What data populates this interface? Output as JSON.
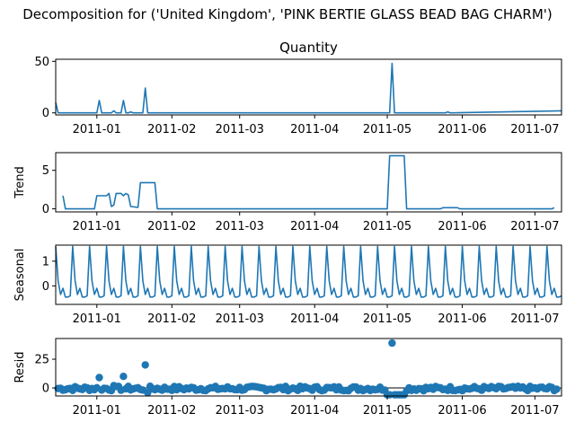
{
  "figure": {
    "suptitle": "Decomposition for ('United Kingdom', 'PINK BERTIE GLASS BEAD BAG CHARM')"
  },
  "chart_data": [
    {
      "type": "line",
      "title": "Quantity",
      "ylabel": "",
      "x_range": [
        "2010-12-15",
        "2011-07-12"
      ],
      "ylim": [
        -2,
        52
      ],
      "yticks": [
        0,
        50
      ],
      "xtick_labels": [
        "2011-01",
        "2011-02",
        "2011-03",
        "2011-04",
        "2011-05",
        "2011-06",
        "2011-07"
      ],
      "grid": false,
      "series": [
        {
          "points": [
            [
              "2010-12-15",
              10
            ],
            [
              "2010-12-16",
              0
            ],
            [
              "2011-01-01",
              0
            ],
            [
              "2011-01-02",
              12
            ],
            [
              "2011-01-03",
              0
            ],
            [
              "2011-01-07",
              0
            ],
            [
              "2011-01-08",
              2
            ],
            [
              "2011-01-09",
              0
            ],
            [
              "2011-01-11",
              0
            ],
            [
              "2011-01-12",
              12
            ],
            [
              "2011-01-13",
              0
            ],
            [
              "2011-01-14",
              0
            ],
            [
              "2011-01-15",
              1
            ],
            [
              "2011-01-16",
              0
            ],
            [
              "2011-01-20",
              0
            ],
            [
              "2011-01-21",
              24
            ],
            [
              "2011-01-22",
              0
            ],
            [
              "2011-05-02",
              0
            ],
            [
              "2011-05-03",
              48
            ],
            [
              "2011-05-04",
              0
            ],
            [
              "2011-05-25",
              0
            ],
            [
              "2011-05-26",
              1
            ],
            [
              "2011-05-27",
              0
            ],
            [
              "2011-07-12",
              2
            ]
          ]
        }
      ]
    },
    {
      "type": "line",
      "title": "",
      "ylabel": "Trend",
      "x_range": [
        "2010-12-15",
        "2011-07-12"
      ],
      "ylim": [
        -0.4,
        7.3
      ],
      "yticks": [
        0,
        5
      ],
      "xtick_labels": [
        "2011-01",
        "2011-02",
        "2011-03",
        "2011-04",
        "2011-05",
        "2011-06",
        "2011-07"
      ],
      "grid": false,
      "series": [
        {
          "points": [
            [
              "2010-12-18",
              1.7
            ],
            [
              "2010-12-19",
              0
            ],
            [
              "2010-12-31",
              0
            ],
            [
              "2011-01-01",
              1.7
            ],
            [
              "2011-01-05",
              1.7
            ],
            [
              "2011-01-06",
              2.0
            ],
            [
              "2011-01-07",
              0.3
            ],
            [
              "2011-01-08",
              0.5
            ],
            [
              "2011-01-09",
              2.0
            ],
            [
              "2011-01-11",
              2.0
            ],
            [
              "2011-01-12",
              1.7
            ],
            [
              "2011-01-13",
              2.0
            ],
            [
              "2011-01-14",
              1.8
            ],
            [
              "2011-01-15",
              0.3
            ],
            [
              "2011-01-18",
              0.2
            ],
            [
              "2011-01-19",
              3.4
            ],
            [
              "2011-01-25",
              3.4
            ],
            [
              "2011-01-26",
              0
            ],
            [
              "2011-05-01",
              0
            ],
            [
              "2011-05-02",
              6.9
            ],
            [
              "2011-05-08",
              6.9
            ],
            [
              "2011-05-09",
              0
            ],
            [
              "2011-05-23",
              0
            ],
            [
              "2011-05-24",
              0.15
            ],
            [
              "2011-05-30",
              0.15
            ],
            [
              "2011-05-31",
              0
            ],
            [
              "2011-07-08",
              0
            ],
            [
              "2011-07-09",
              0.15
            ]
          ]
        }
      ]
    },
    {
      "type": "line",
      "title": "",
      "ylabel": "Seasonal",
      "x_range": [
        "2010-12-15",
        "2011-07-12"
      ],
      "ylim": [
        -0.75,
        1.65
      ],
      "yticks": [
        0,
        1
      ],
      "xtick_labels": [
        "2011-01",
        "2011-02",
        "2011-03",
        "2011-04",
        "2011-05",
        "2011-06",
        "2011-07"
      ],
      "grid": false,
      "period_days": 7,
      "weekly_pattern": [
        1.6,
        0.2,
        -0.35,
        -0.1,
        -0.45,
        -0.45,
        -0.4
      ],
      "pattern_start": "2010-12-16",
      "series": [
        {
          "points": [
            [
              "2010-12-15",
              1.6
            ],
            [
              "2011-07-12",
              1.6
            ]
          ]
        }
      ]
    },
    {
      "type": "scatter",
      "title": "",
      "ylabel": "Resid",
      "x_range": [
        "2010-12-15",
        "2011-07-12"
      ],
      "ylim": [
        -7,
        43
      ],
      "yticks": [
        0,
        25
      ],
      "xtick_labels": [
        "2011-01",
        "2011-02",
        "2011-03",
        "2011-04",
        "2011-05",
        "2011-06",
        "2011-07"
      ],
      "grid": false,
      "baseline": 0,
      "outliers": [
        [
          "2011-01-02",
          9
        ],
        [
          "2011-01-08",
          2
        ],
        [
          "2011-01-12",
          10
        ],
        [
          "2011-01-21",
          20
        ],
        [
          "2011-01-22",
          -4
        ],
        [
          "2011-05-03",
          39
        ],
        [
          "2011-05-01",
          -6
        ],
        [
          "2011-05-02",
          -6
        ],
        [
          "2011-05-04",
          -6
        ],
        [
          "2011-05-05",
          -6
        ],
        [
          "2011-05-06",
          -6
        ],
        [
          "2011-05-07",
          -6
        ],
        [
          "2011-05-08",
          -6
        ]
      ],
      "typical_range": [
        -2.5,
        1.5
      ],
      "x_start": "2010-12-16",
      "x_end": "2011-07-10"
    }
  ]
}
